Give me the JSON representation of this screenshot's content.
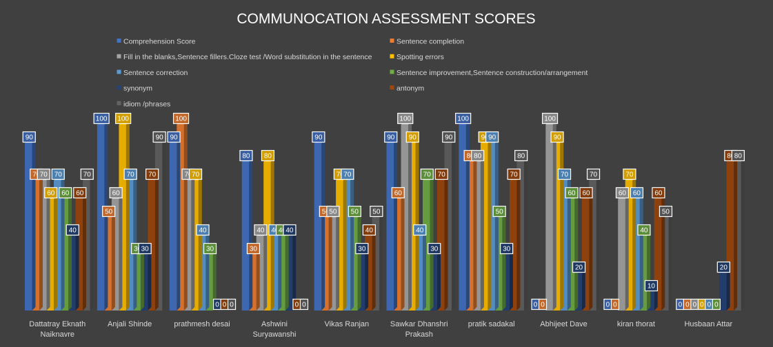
{
  "chart_data": {
    "type": "bar",
    "title": "COMMUNOCATION ASSESSMENT SCORES",
    "ylim": [
      0,
      100
    ],
    "grid": false,
    "legend_position": "top",
    "background_color": "#404040",
    "categories": [
      [
        "Dattatray Eknath",
        "Naiknavre"
      ],
      [
        "Anjali Shinde"
      ],
      [
        "prathmesh desai"
      ],
      [
        "Ashwini",
        "Suryawanshi"
      ],
      [
        "Vikas Ranjan"
      ],
      [
        "Sawkar Dhanshri",
        "Prakash"
      ],
      [
        "pratik sadakal"
      ],
      [
        "Abhijeet Dave"
      ],
      [
        "kiran thorat"
      ],
      [
        "Husbaan Attar"
      ]
    ],
    "series": [
      {
        "name": "Comprehension Score",
        "color": "#4472c4",
        "values": [
          90,
          100,
          90,
          80,
          90,
          90,
          100,
          0,
          0,
          0
        ]
      },
      {
        "name": "Sentence completion",
        "color": "#ed7d31",
        "values": [
          70,
          50,
          100,
          30,
          50,
          60,
          80,
          0,
          0,
          0
        ]
      },
      {
        "name": "Fill in the blanks,Sentence fillers.Cloze test /Word substitution in the sentence",
        "color": "#a5a5a5",
        "values": [
          70,
          60,
          70,
          40,
          50,
          100,
          80,
          100,
          60,
          0
        ]
      },
      {
        "name": "Spotting errors",
        "color": "#ffc000",
        "values": [
          60,
          100,
          70,
          80,
          70,
          90,
          90,
          90,
          70,
          0
        ]
      },
      {
        "name": "Sentence correction",
        "color": "#5b9bd5",
        "values": [
          70,
          70,
          40,
          40,
          70,
          40,
          90,
          70,
          60,
          0
        ]
      },
      {
        "name": "Sentence improvement,Sentence construction/arrangement",
        "color": "#70ad47",
        "values": [
          60,
          30,
          30,
          40,
          50,
          70,
          50,
          60,
          40,
          0
        ]
      },
      {
        "name": "synonym",
        "color": "#264478",
        "values": [
          40,
          30,
          0,
          40,
          30,
          30,
          30,
          20,
          10,
          20
        ]
      },
      {
        "name": "antonym",
        "color": "#9e480e",
        "values": [
          60,
          70,
          0,
          0,
          40,
          70,
          70,
          60,
          60,
          80
        ]
      },
      {
        "name": "idiom /phrases",
        "color": "#636363",
        "values": [
          70,
          90,
          0,
          0,
          50,
          90,
          80,
          70,
          50,
          80
        ]
      }
    ]
  }
}
